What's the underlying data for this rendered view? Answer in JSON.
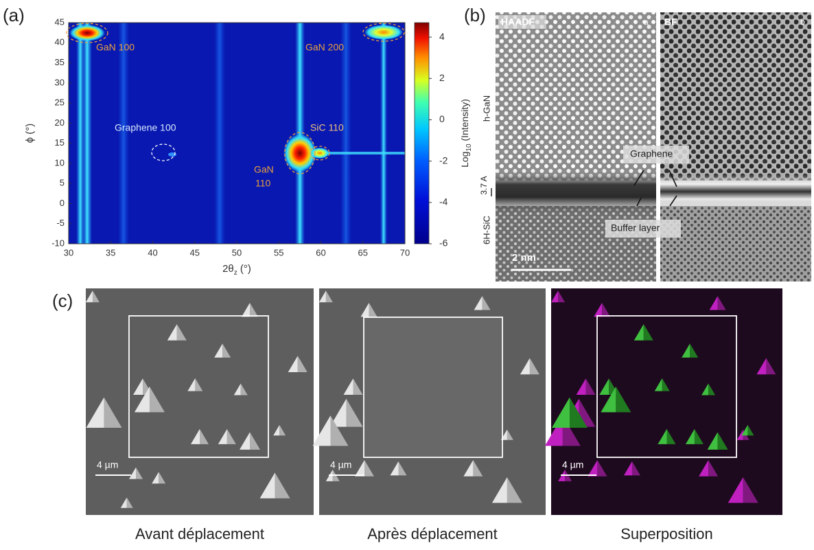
{
  "chart_data": {
    "type": "heatmap",
    "xlabel": [
      "2θ",
      "z",
      " (°)"
    ],
    "ylabel": "ϕ (°)",
    "xlim": [
      30,
      70
    ],
    "xticks": [
      30,
      35,
      40,
      45,
      50,
      55,
      60,
      65,
      70
    ],
    "ylim": [
      -10,
      45
    ],
    "yticks": [
      -10,
      -5,
      0,
      5,
      10,
      15,
      20,
      25,
      30,
      35,
      40,
      45
    ],
    "colorbar": {
      "label": [
        "Log",
        "10",
        " (Intensity)"
      ],
      "clim": [
        -6,
        4.7
      ],
      "ticks": [
        -6,
        -4,
        -2,
        0,
        2,
        4
      ]
    },
    "annotations": [
      "GaN  100",
      "GaN  200",
      "Graphene 100",
      "SiC  110",
      "GaN",
      "110"
    ]
  },
  "panel_labels": [
    "(a)",
    "(b)",
    "(c)"
  ],
  "panel_b": {
    "left_title": "HAADF",
    "left_tag": "a",
    "right_title": "BF",
    "right_tag": "b",
    "layers": [
      "h-GaN",
      "3.7 A",
      "6H-SiC"
    ],
    "graphene": "Graphene",
    "buffer": "Buffer layer",
    "scale": "2 nm"
  },
  "panel_c": {
    "scales": [
      "4 µm",
      "4 µm",
      "4 µm"
    ],
    "captions": [
      "Avant déplacement",
      "Après déplacement",
      "Superposition"
    ]
  }
}
